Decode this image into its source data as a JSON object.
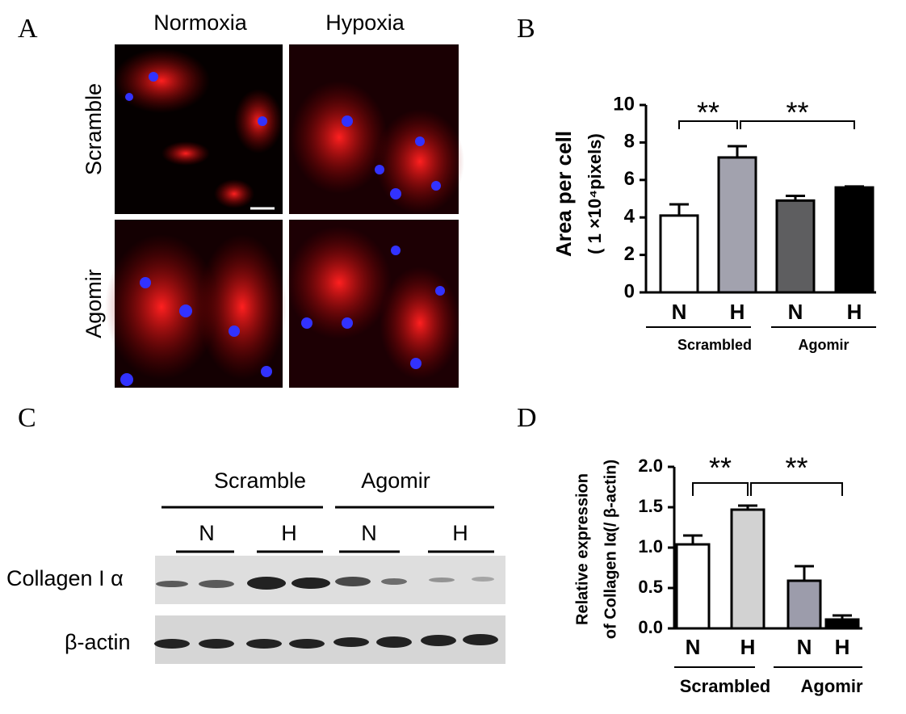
{
  "panel_a": {
    "letter": "A",
    "columns": [
      "Normoxia",
      "Hypoxia"
    ],
    "rows": [
      "Scramble",
      "Agomir"
    ]
  },
  "panel_c": {
    "letter": "C",
    "groups": [
      "Scramble",
      "Agomir"
    ],
    "conditions": [
      "N",
      "H",
      "N",
      "H"
    ],
    "proteins": [
      "Collagen I α",
      "β-actin"
    ]
  },
  "chart_data": [
    {
      "type": "bar",
      "letter": "B",
      "y_label": [
        "Area per cell",
        "( 1 ×10⁴pixels)"
      ],
      "categories": [
        "N",
        "H",
        "N",
        "H"
      ],
      "groups": [
        "Scrambled",
        "Agomir"
      ],
      "values": [
        4.1,
        7.2,
        4.9,
        5.6
      ],
      "errors": [
        0.6,
        0.6,
        0.25,
        0.05
      ],
      "colors": [
        "#ffffff",
        "#a2a2ae",
        "#5e5e60",
        "#000000"
      ],
      "ylim": [
        0,
        10
      ],
      "yticks": [
        0,
        2,
        4,
        6,
        8,
        10
      ],
      "annotations": [
        "**",
        "**"
      ]
    },
    {
      "type": "bar",
      "letter": "D",
      "y_label": [
        "Relative  expression",
        "of Collagen Iα(/ β-actin)"
      ],
      "categories": [
        "N",
        "H",
        "N",
        "H"
      ],
      "groups": [
        "Scrambled",
        "Agomir"
      ],
      "values": [
        1.04,
        1.47,
        0.59,
        0.11
      ],
      "errors": [
        0.11,
        0.05,
        0.18,
        0.05
      ],
      "colors": [
        "#ffffff",
        "#d2d2d2",
        "#9c9cab",
        "#000000"
      ],
      "ylim": [
        0,
        2
      ],
      "yticks": [
        {
          "value": 0,
          "label": "0.0"
        },
        {
          "value": 0.5,
          "label": "0.5"
        },
        {
          "value": 1,
          "label": "1.0"
        },
        {
          "value": 1.5,
          "label": "1.5"
        },
        {
          "value": 2,
          "label": "2.0"
        }
      ],
      "annotations": [
        "**",
        "**"
      ]
    }
  ]
}
